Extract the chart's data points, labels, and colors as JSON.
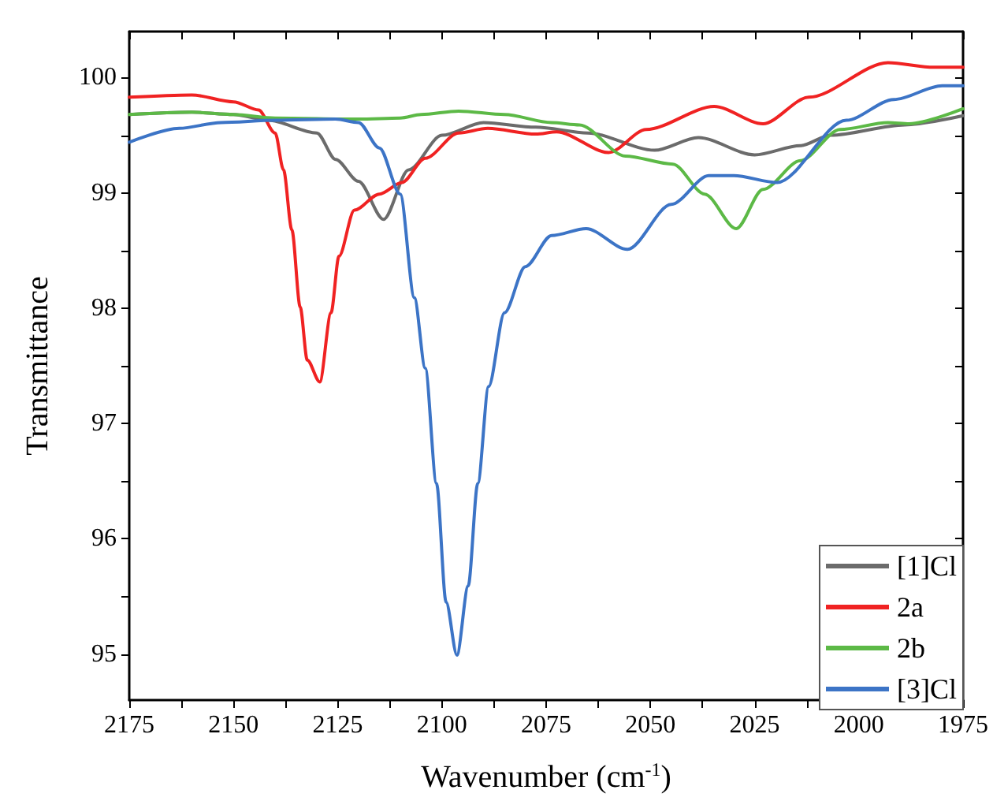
{
  "chart_data": {
    "type": "line",
    "xlabel": "Wavenumber (cm$^{-1}$)",
    "ylabel": "Transmittance",
    "xlim": [
      2175,
      1975
    ],
    "ylim": [
      94.6,
      100.4
    ],
    "xticks": [
      2175,
      {
        "value": 2162.5,
        "label": null
      },
      2150,
      {
        "value": 2137.5,
        "label": null
      },
      2125,
      {
        "value": 2112.5,
        "label": null
      },
      2100,
      {
        "value": 2087.5,
        "label": null
      },
      2075,
      {
        "value": 2062.5,
        "label": null
      },
      2050,
      {
        "value": 2037.5,
        "label": null
      },
      2025,
      {
        "value": 2012.5,
        "label": null
      },
      2000,
      {
        "value": 1987.5,
        "label": null
      },
      1975
    ],
    "yticks": [
      95,
      {
        "value": 95.5,
        "label": null
      },
      96,
      {
        "value": 96.5,
        "label": null
      },
      97,
      {
        "value": 97.5,
        "label": null
      },
      98,
      {
        "value": 98.5,
        "label": null
      },
      99,
      {
        "value": 99.5,
        "label": null
      },
      100
    ],
    "grid": false,
    "legend": "bottom right",
    "marker": "none",
    "line_style": "solid",
    "series": [
      {
        "name": "[1]Cl",
        "color": "#6b6b6b",
        "x": [
          2175,
          2160,
          2150,
          2141.7,
          2130,
          2125.5,
          2120,
          2114,
          2108,
          2100,
          2090,
          2077.5,
          2065,
          2049,
          2038.5,
          2025,
          2014,
          2006.8,
          1989,
          1975
        ],
        "values": [
          99.68,
          99.7,
          99.68,
          99.63,
          99.52,
          99.29,
          99.1,
          98.77,
          99.2,
          99.5,
          99.61,
          99.57,
          99.52,
          99.37,
          99.48,
          99.33,
          99.41,
          99.5,
          99.59,
          99.67
        ]
      },
      {
        "name": "2a",
        "color": "#f02222",
        "x": [
          2175,
          2160,
          2150,
          2144,
          2140,
          2138,
          2136,
          2134,
          2132.3,
          2129.3,
          2126.6,
          2124.7,
          2121,
          2115,
          2109.6,
          2104,
          2096,
          2089,
          2077.5,
          2072.5,
          2060,
          2051,
          2034.7,
          2023,
          2012,
          1993,
          1982,
          1975
        ],
        "values": [
          99.83,
          99.85,
          99.79,
          99.72,
          99.52,
          99.2,
          98.68,
          98.01,
          97.55,
          97.36,
          97.96,
          98.45,
          98.85,
          98.99,
          99.09,
          99.3,
          99.52,
          99.56,
          99.51,
          99.53,
          99.35,
          99.55,
          99.75,
          99.6,
          99.83,
          100.13,
          100.09,
          100.09
        ]
      },
      {
        "name": "2b",
        "color": "#5cb946",
        "x": [
          2175,
          2160,
          2150,
          2140,
          2120,
          2110,
          2105,
          2096,
          2085,
          2073.7,
          2067,
          2056,
          2044.6,
          2037,
          2029.4,
          2023,
          2014,
          2004.5,
          1993,
          1987.9,
          1975
        ],
        "values": [
          99.68,
          99.7,
          99.68,
          99.65,
          99.64,
          99.65,
          99.68,
          99.71,
          99.68,
          99.61,
          99.59,
          99.32,
          99.25,
          98.99,
          98.69,
          99.03,
          99.28,
          99.55,
          99.61,
          99.6,
          99.73
        ]
      },
      {
        "name": "[3]Cl",
        "color": "#3c74c6",
        "x": [
          2175,
          2163,
          2153,
          2140,
          2125.5,
          2120,
          2115,
          2110,
          2106.6,
          2104,
          2101.3,
          2099,
          2096.4,
          2093.7,
          2091.4,
          2088.8,
          2085,
          2080,
          2073.7,
          2065.4,
          2055.5,
          2045,
          2036,
          2030,
          2019.6,
          2003,
          1991.6,
          1980,
          1975
        ],
        "values": [
          99.44,
          99.56,
          99.61,
          99.63,
          99.64,
          99.61,
          99.39,
          98.99,
          98.09,
          97.48,
          96.48,
          95.45,
          94.99,
          95.59,
          96.48,
          97.32,
          97.96,
          98.36,
          98.63,
          98.69,
          98.51,
          98.9,
          99.15,
          99.15,
          99.09,
          99.63,
          99.81,
          99.93,
          99.93
        ]
      }
    ]
  }
}
